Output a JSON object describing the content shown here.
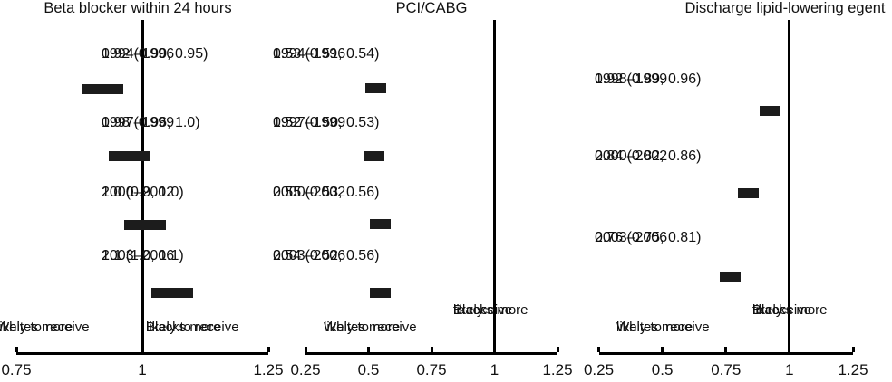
{
  "figure": {
    "background_color": "#ffffff",
    "text_color": "#111111",
    "marker_color": "#1c1c1c",
    "line_color": "#000000"
  },
  "chart_data": [
    {
      "type": "scatter",
      "title": "Beta blocker within 24 hours",
      "xlim": [
        0.75,
        1.25
      ],
      "xticks": [
        0.75,
        1,
        1.25
      ],
      "xtick_labels": [
        "0.75",
        "1",
        "1.25"
      ],
      "reference_x": 1,
      "grid": false,
      "left_annotation": [
        "Whites more",
        "likely to receive"
      ],
      "right_annotation": [
        "Blacks more",
        "likely to receive"
      ],
      "points": [
        {
          "period": "1994–1996",
          "estimate_label": "0.92 (0.90, 0.95)",
          "estimate": 0.92,
          "ci": [
            0.9,
            0.95
          ],
          "plot_x": 0.92
        },
        {
          "period": "1997–1999",
          "estimate_label": "0.98 (0.96, 1.0)",
          "estimate": 0.98,
          "ci": [
            0.96,
            1.0
          ],
          "plot_x": 0.975
        },
        {
          "period": "2000–2002",
          "estimate_label": "1.0 (0.9, 1.0)",
          "estimate": 1.0,
          "ci": [
            0.9,
            1.0
          ],
          "plot_x": 1.005
        },
        {
          "period": "2003–2006",
          "estimate_label": "1.1 (1.0, 1.1)",
          "estimate": 1.1,
          "ci": [
            1.0,
            1.1
          ],
          "plot_x": 1.06
        }
      ]
    },
    {
      "type": "scatter",
      "title": "PCI/CABG",
      "xlim": [
        0.25,
        1.25
      ],
      "xticks": [
        0.25,
        0.5,
        0.75,
        1,
        1.25
      ],
      "xtick_labels": [
        "0.25",
        "0.5",
        "0.75",
        "1",
        "1.25"
      ],
      "reference_x": 1,
      "grid": false,
      "left_annotation": [
        "Whites more",
        "likely to receive"
      ],
      "right_annotation": [
        "Blacks more",
        "likely",
        "to receive"
      ],
      "points": [
        {
          "period": "1994–1996",
          "estimate_label": "0.53 (0.51, 0.54)",
          "estimate": 0.53,
          "ci": [
            0.51,
            0.54
          ],
          "plot_x": 0.53
        },
        {
          "period": "1997–1999",
          "estimate_label": "0.52 (0.50, 0.53)",
          "estimate": 0.52,
          "ci": [
            0.5,
            0.53
          ],
          "plot_x": 0.52
        },
        {
          "period": "2000–2002",
          "estimate_label": "0.55 (0.53, 0.56)",
          "estimate": 0.55,
          "ci": [
            0.53,
            0.56
          ],
          "plot_x": 0.547
        },
        {
          "period": "2003–2006",
          "estimate_label": "0.54 (0.52, 0.56)",
          "estimate": 0.54,
          "ci": [
            0.52,
            0.56
          ],
          "plot_x": 0.545
        }
      ]
    },
    {
      "type": "scatter",
      "title": "Discharge lipid-lowering egent",
      "xlim": [
        0.25,
        1.25
      ],
      "xticks": [
        0.25,
        0.5,
        0.75,
        1,
        1.25
      ],
      "xtick_labels": [
        "0.25",
        "0.5",
        "0.75",
        "1",
        "1.25"
      ],
      "reference_x": 1,
      "grid": false,
      "left_annotation": [
        "Whites more",
        "likely to receive"
      ],
      "right_annotation": [
        "Blacks more",
        "likely",
        "to receive"
      ],
      "points": [
        {
          "period": "1998–1999",
          "estimate_label": "0.92 (0.89, 0.96)",
          "estimate": 0.92,
          "ci": [
            0.89,
            0.96
          ],
          "plot_x": 0.925
        },
        {
          "period": "2000–2002",
          "estimate_label": "0.84 (0.82, 0.86)",
          "estimate": 0.84,
          "ci": [
            0.82,
            0.86
          ],
          "plot_x": 0.84
        },
        {
          "period": "2003–2006",
          "estimate_label": "0.76 (0.75, 0.81)",
          "estimate": 0.76,
          "ci": [
            0.75,
            0.81
          ],
          "plot_x": 0.768
        }
      ]
    }
  ]
}
